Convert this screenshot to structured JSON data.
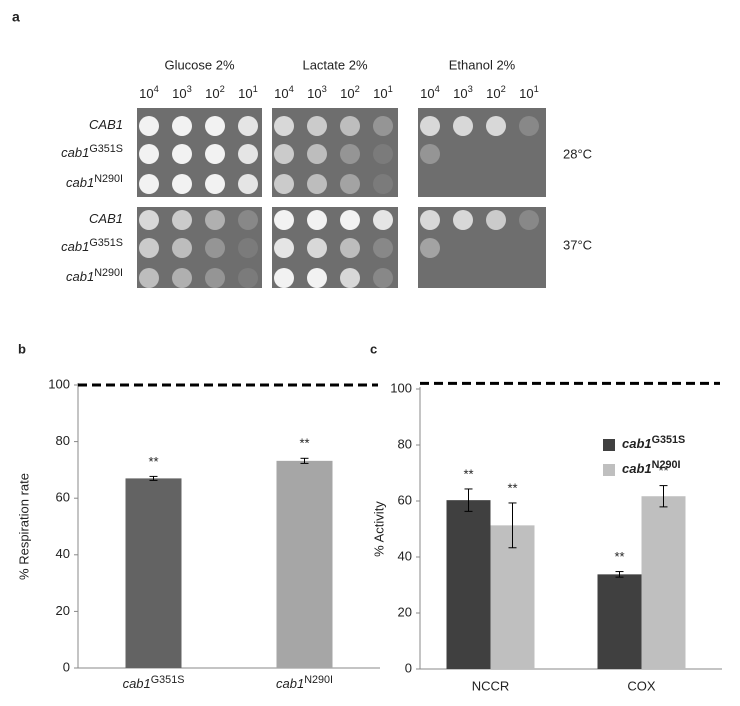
{
  "figure_a": {
    "label": "a",
    "media": [
      "Glucose 2%",
      "Lactate 2%",
      "Ethanol 2%"
    ],
    "dilutions": [
      {
        "base": "10",
        "sup": "4"
      },
      {
        "base": "10",
        "sup": "3"
      },
      {
        "base": "10",
        "sup": "2"
      },
      {
        "base": "10",
        "sup": "1"
      }
    ],
    "strains": [
      {
        "base": "CAB1"
      },
      {
        "base": "cab1",
        "sup": "G351S"
      },
      {
        "base": "cab1",
        "sup": "N290I"
      }
    ],
    "temperatures": [
      "28°C",
      "37°C"
    ]
  },
  "chart_data": [
    {
      "type": "bar",
      "label": "b",
      "ylabel": "% Respiration rate",
      "categories": [
        {
          "base": "cab1",
          "sup": "G351S"
        },
        {
          "base": "cab1",
          "sup": "N290I"
        }
      ],
      "values": [
        67,
        73.2
      ],
      "errors": [
        0.7,
        0.9
      ],
      "colors": [
        "#636363",
        "#a6a6a6"
      ],
      "annotations": [
        "**",
        "**"
      ],
      "reference_line": 100,
      "ylim": [
        0,
        100
      ],
      "yticks": [
        0,
        20,
        40,
        60,
        80,
        100
      ]
    },
    {
      "type": "grouped-bar",
      "label": "c",
      "ylabel": "% Activity",
      "categories": [
        "NCCR",
        "COX"
      ],
      "series": [
        {
          "name": {
            "base": "cab1",
            "sup": "G351S"
          },
          "color": "#404040",
          "values": [
            60.3,
            33.8
          ],
          "errors": [
            4,
            1
          ],
          "annotations": [
            "**",
            "**"
          ]
        },
        {
          "name": {
            "base": "cab1",
            "sup": "N290I"
          },
          "color": "#bfbfbf",
          "values": [
            51.3,
            61.7
          ],
          "errors": [
            8,
            3.8
          ],
          "annotations": [
            "**",
            "**"
          ]
        }
      ],
      "reference_line": 102,
      "legend": "upper right",
      "ylim": [
        0,
        100
      ],
      "yticks": [
        0,
        20,
        40,
        60,
        80,
        100
      ]
    }
  ]
}
